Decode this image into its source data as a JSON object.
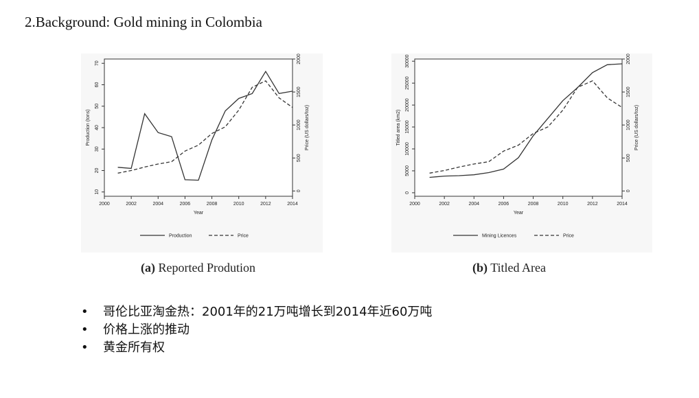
{
  "slide": {
    "title": "2.Background: Gold mining in Colombia",
    "bullets": [
      "哥伦比亚淘金热：2001年的21万吨增长到2014年近60万吨",
      "价格上涨的推动",
      "黄金所有权"
    ],
    "bullet_marker": "•"
  },
  "chart_data": [
    {
      "type": "line",
      "caption_tag": "(a)",
      "caption_text": "Reported Prodution",
      "xlabel": "Year",
      "ylabel": "Production (tons)",
      "y2label": "Price (US dollars/toz)",
      "xlim": [
        2000,
        2014
      ],
      "ylim": [
        8,
        72
      ],
      "y2lim": [
        -80,
        2000
      ],
      "xticks": [
        2000,
        2002,
        2004,
        2006,
        2008,
        2010,
        2012,
        2014
      ],
      "yticks": [
        10,
        20,
        30,
        40,
        50,
        60,
        70
      ],
      "y2ticks": [
        0,
        500,
        1000,
        1500,
        2000
      ],
      "legend_position": "bottom",
      "grid": false,
      "series": [
        {
          "name": "Production",
          "axis": "left",
          "style": "solid",
          "x": [
            2001,
            2002,
            2003,
            2004,
            2005,
            2006,
            2007,
            2008,
            2009,
            2010,
            2011,
            2012,
            2013,
            2014
          ],
          "y": [
            21.5,
            21,
            46.5,
            37.7,
            35.8,
            15.7,
            15.5,
            34.3,
            47.8,
            53.6,
            55.9,
            66.2,
            55.9,
            57
          ]
        },
        {
          "name": "Price",
          "axis": "right",
          "style": "dashed",
          "x": [
            2001,
            2002,
            2003,
            2004,
            2005,
            2006,
            2007,
            2008,
            2009,
            2010,
            2011,
            2012,
            2013,
            2014
          ],
          "y": [
            271,
            310,
            363,
            409,
            444,
            604,
            695,
            872,
            972,
            1225,
            1572,
            1669,
            1411,
            1266
          ]
        }
      ]
    },
    {
      "type": "line",
      "caption_tag": "(b)",
      "caption_text": "Titled Area",
      "xlabel": "Year",
      "ylabel": "Titled area (km2)",
      "y2label": "Price (US dollars/toz)",
      "xlim": [
        2000,
        2014
      ],
      "ylim": [
        -800,
        30500
      ],
      "y2lim": [
        -80,
        2000
      ],
      "xticks": [
        2000,
        2002,
        2004,
        2006,
        2008,
        2010,
        2012,
        2014
      ],
      "yticks": [
        0,
        5000,
        10000,
        15000,
        20000,
        25000,
        30000
      ],
      "y2ticks": [
        0,
        500,
        1000,
        1500,
        2000
      ],
      "legend_position": "bottom",
      "grid": false,
      "series": [
        {
          "name": "Mining Licences",
          "axis": "left",
          "style": "solid",
          "x": [
            2001,
            2002,
            2003,
            2004,
            2005,
            2006,
            2007,
            2008,
            2009,
            2010,
            2011,
            2012,
            2013,
            2014
          ],
          "y": [
            3500,
            3800,
            3900,
            4100,
            4600,
            5400,
            8000,
            13000,
            17000,
            21000,
            24000,
            27400,
            29200,
            29400
          ]
        },
        {
          "name": "Price",
          "axis": "right",
          "style": "dashed",
          "x": [
            2001,
            2002,
            2003,
            2004,
            2005,
            2006,
            2007,
            2008,
            2009,
            2010,
            2011,
            2012,
            2013,
            2014
          ],
          "y": [
            271,
            310,
            363,
            409,
            444,
            604,
            695,
            872,
            972,
            1225,
            1572,
            1669,
            1411,
            1266
          ]
        }
      ]
    }
  ]
}
